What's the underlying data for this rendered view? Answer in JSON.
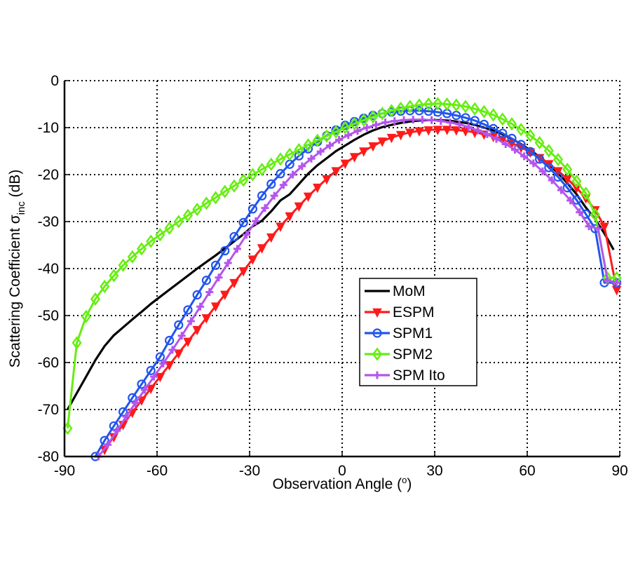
{
  "chart_data": {
    "type": "line",
    "title": "",
    "xlabel": "Observation Angle (",
    "xlabel_sup": "o",
    "xlabel_close": ")",
    "ylabel_main": "Scattering Coefficient σ",
    "ylabel_sub": "inc",
    "ylabel_unit": " (dB)",
    "xlim": [
      -90,
      90
    ],
    "ylim": [
      -80,
      0
    ],
    "xticks": [
      -90,
      -60,
      -30,
      0,
      30,
      60,
      90
    ],
    "yticks": [
      0,
      -10,
      -20,
      -30,
      -40,
      -50,
      -60,
      -70,
      -80
    ],
    "xtick_labels": [
      "-90",
      "-60",
      "-30",
      "0",
      "30",
      "60",
      "90"
    ],
    "ytick_labels": [
      "0",
      "-10",
      "-20",
      "-30",
      "-40",
      "-50",
      "-60",
      "-70",
      "-80"
    ],
    "grid": true,
    "legend_position": "center-right",
    "series": [
      {
        "name": "MoM",
        "color": "#000000",
        "marker": "none",
        "x": [
          -89,
          -86,
          -83,
          -80,
          -77,
          -74,
          -71,
          -68,
          -65,
          -62,
          -59,
          -56,
          -53,
          -50,
          -47,
          -44,
          -41,
          -38,
          -35,
          -32,
          -29,
          -26,
          -23,
          -20,
          -17,
          -14,
          -11,
          -8,
          -5,
          -2,
          1,
          4,
          7,
          10,
          13,
          16,
          19,
          22,
          25,
          28,
          31,
          34,
          37,
          40,
          43,
          46,
          49,
          52,
          55,
          58,
          61,
          64,
          67,
          70,
          73,
          76,
          79,
          82,
          85,
          88
        ],
        "y": [
          -70,
          -66.5,
          -63,
          -59.5,
          -56.5,
          -54.2,
          -52.5,
          -50.8,
          -49.2,
          -47.5,
          -46,
          -44.5,
          -43,
          -41.5,
          -40,
          -38.6,
          -37.2,
          -35.7,
          -34.2,
          -32.7,
          -31,
          -29.8,
          -27.8,
          -25.5,
          -24.2,
          -22,
          -19.8,
          -18,
          -16.5,
          -15,
          -13.8,
          -12.6,
          -11.5,
          -10.6,
          -9.9,
          -9.4,
          -9,
          -8.7,
          -8.5,
          -8.4,
          -8.4,
          -8.5,
          -8.7,
          -9,
          -9.4,
          -10,
          -10.6,
          -11.4,
          -12.4,
          -13.5,
          -14.8,
          -16.2,
          -17.8,
          -19.7,
          -21.8,
          -24.2,
          -27,
          -29.5,
          -32.5,
          -36
        ]
      },
      {
        "name": "ESPM",
        "color": "#ff1a1a",
        "marker": "triangle-down",
        "x": [
          -77,
          -74,
          -71,
          -68,
          -65,
          -62,
          -59,
          -56,
          -53,
          -50,
          -47,
          -44,
          -41,
          -38,
          -35,
          -32,
          -29,
          -26,
          -23,
          -20,
          -17,
          -14,
          -11,
          -8,
          -5,
          -2,
          1,
          4,
          7,
          10,
          13,
          16,
          19,
          22,
          25,
          28,
          31,
          34,
          37,
          40,
          43,
          46,
          49,
          52,
          55,
          58,
          61,
          64,
          67,
          70,
          73,
          76,
          79,
          82,
          85,
          89
        ],
        "y": [
          -78.5,
          -75.8,
          -73.2,
          -70.6,
          -68,
          -65.5,
          -63,
          -60.5,
          -58,
          -55.5,
          -53,
          -50.5,
          -48,
          -45.5,
          -43,
          -40.5,
          -38,
          -35.6,
          -33.3,
          -31,
          -28.8,
          -26.7,
          -24.6,
          -22.7,
          -20.9,
          -19.2,
          -17.6,
          -16.2,
          -15,
          -13.9,
          -12.9,
          -12.1,
          -11.5,
          -11,
          -10.7,
          -10.5,
          -10.4,
          -10.4,
          -10.5,
          -10.7,
          -11,
          -11.4,
          -11.9,
          -12.5,
          -13.3,
          -14.2,
          -15.2,
          -16.4,
          -17.7,
          -19.2,
          -20.9,
          -22.8,
          -25,
          -27.5,
          -31,
          -44.5
        ]
      },
      {
        "name": "SPM1",
        "color": "#2255ee",
        "marker": "circle",
        "x": [
          -80,
          -77,
          -74,
          -71,
          -68,
          -65,
          -62,
          -59,
          -56,
          -53,
          -50,
          -47,
          -44,
          -41,
          -38,
          -35,
          -32,
          -29,
          -26,
          -23,
          -20,
          -17,
          -14,
          -11,
          -8,
          -5,
          -2,
          1,
          4,
          7,
          10,
          13,
          16,
          19,
          22,
          25,
          28,
          31,
          34,
          37,
          40,
          43,
          46,
          49,
          52,
          55,
          58,
          61,
          64,
          67,
          70,
          73,
          76,
          79,
          82,
          85,
          89
        ],
        "y": [
          -80,
          -76.6,
          -73.5,
          -70.5,
          -67.5,
          -64.6,
          -61.7,
          -58.8,
          -55.3,
          -52,
          -48.8,
          -45.6,
          -42.5,
          -39.3,
          -36.2,
          -33.2,
          -30.2,
          -27.3,
          -24.5,
          -22,
          -19.8,
          -17.8,
          -16,
          -14.5,
          -13,
          -11.7,
          -10.5,
          -9.5,
          -8.7,
          -8,
          -7.4,
          -7,
          -6.7,
          -6.5,
          -6.4,
          -6.4,
          -6.5,
          -6.7,
          -7,
          -7.4,
          -7.9,
          -8.5,
          -9.3,
          -10.2,
          -11.2,
          -12.3,
          -13.6,
          -15.1,
          -16.7,
          -18.5,
          -20.5,
          -22.8,
          -25.4,
          -28.4,
          -31.5,
          -43,
          -43
        ]
      },
      {
        "name": "SPM2",
        "color": "#66ee11",
        "marker": "diamond",
        "x": [
          -89,
          -86,
          -83,
          -80,
          -77,
          -74,
          -71,
          -68,
          -65,
          -62,
          -59,
          -56,
          -53,
          -50,
          -47,
          -44,
          -41,
          -38,
          -35,
          -32,
          -29,
          -26,
          -23,
          -20,
          -17,
          -14,
          -11,
          -8,
          -5,
          -2,
          1,
          4,
          7,
          10,
          13,
          16,
          19,
          22,
          25,
          28,
          31,
          34,
          37,
          40,
          43,
          46,
          49,
          52,
          55,
          58,
          61,
          64,
          67,
          70,
          73,
          76,
          79,
          82,
          86,
          89
        ],
        "y": [
          -74,
          -55.8,
          -50.2,
          -46.5,
          -43.8,
          -41.5,
          -39.3,
          -37.5,
          -35.8,
          -34.2,
          -32.8,
          -31.4,
          -30,
          -28.7,
          -27.4,
          -26.1,
          -24.9,
          -23.6,
          -22.4,
          -21.2,
          -20,
          -18.9,
          -17.8,
          -16.7,
          -15.7,
          -14.7,
          -13.7,
          -12.7,
          -11.8,
          -10.9,
          -10,
          -9.2,
          -8.4,
          -7.7,
          -7,
          -6.4,
          -5.9,
          -5.5,
          -5.2,
          -5,
          -4.9,
          -5,
          -5.2,
          -5.5,
          -6,
          -6.6,
          -7.3,
          -8.2,
          -9.2,
          -10.4,
          -11.7,
          -13.2,
          -14.9,
          -16.8,
          -18.9,
          -21.4,
          -24,
          -28.5,
          -42,
          -42
        ]
      },
      {
        "name": "SPM Ito",
        "color": "#b455ee",
        "marker": "plus",
        "x": [
          -79,
          -76,
          -73,
          -70,
          -67,
          -64,
          -61,
          -58,
          -55,
          -52,
          -49,
          -46,
          -43,
          -40,
          -37,
          -34,
          -31,
          -28,
          -25,
          -22,
          -19,
          -16,
          -13,
          -10,
          -7,
          -4,
          -1,
          2,
          5,
          8,
          11,
          14,
          17,
          20,
          23,
          26,
          29,
          32,
          35,
          38,
          41,
          44,
          47,
          50,
          53,
          56,
          59,
          62,
          65,
          68,
          71,
          74,
          77,
          80,
          83,
          86,
          89
        ],
        "y": [
          -80,
          -77.5,
          -74.5,
          -71.5,
          -68.6,
          -65.8,
          -63,
          -60.2,
          -57.3,
          -54.3,
          -51.2,
          -48.1,
          -45,
          -41.9,
          -38.8,
          -35.8,
          -32.8,
          -29.9,
          -27.1,
          -24.5,
          -22.2,
          -20,
          -18.2,
          -16.6,
          -15.1,
          -13.8,
          -12.6,
          -11.6,
          -10.7,
          -10,
          -9.4,
          -8.9,
          -8.6,
          -8.4,
          -8.3,
          -8.3,
          -8.4,
          -8.6,
          -8.9,
          -9.3,
          -9.9,
          -10.6,
          -11.4,
          -12.4,
          -13.5,
          -14.7,
          -16.1,
          -17.6,
          -19.3,
          -21.2,
          -23.3,
          -25.5,
          -28,
          -31,
          -31.5,
          -42.5,
          -43
        ]
      }
    ]
  }
}
